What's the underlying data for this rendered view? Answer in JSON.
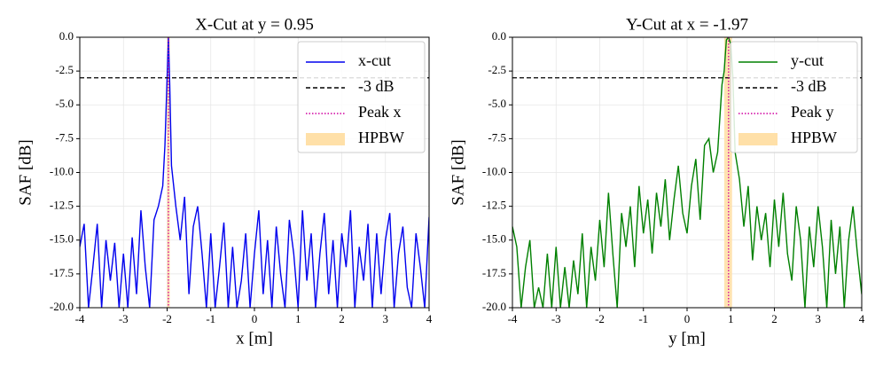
{
  "chart_data": [
    {
      "type": "line",
      "title": "X-Cut at y = 0.95",
      "xlabel": "x [m]",
      "ylabel": "SAF [dB]",
      "xlim": [
        -4,
        4
      ],
      "ylim": [
        -20,
        0
      ],
      "grid": true,
      "legend": "upper right",
      "xticks": [
        -4,
        -3,
        -2,
        -1,
        0,
        1,
        2,
        3,
        4
      ],
      "yticks": [
        {
          "value": 0,
          "label": "0.0"
        },
        -2.5,
        {
          "value": -5,
          "label": "-5.0"
        },
        -7.5,
        {
          "value": -10,
          "label": "-10.0"
        },
        -12.5,
        {
          "value": -15,
          "label": "-15.0"
        },
        -17.5,
        {
          "value": -20,
          "label": "-20.0"
        }
      ],
      "series": [
        {
          "name": "x-cut",
          "color": "#0000ee",
          "x": [
            -4.0,
            -3.9,
            -3.8,
            -3.7,
            -3.6,
            -3.5,
            -3.4,
            -3.3,
            -3.2,
            -3.1,
            -3.0,
            -2.9,
            -2.8,
            -2.7,
            -2.6,
            -2.5,
            -2.4,
            -2.3,
            -2.2,
            -2.1,
            -2.05,
            -2.0,
            -1.97,
            -1.94,
            -1.9,
            -1.8,
            -1.7,
            -1.6,
            -1.5,
            -1.4,
            -1.3,
            -1.2,
            -1.1,
            -1.0,
            -0.9,
            -0.8,
            -0.7,
            -0.6,
            -0.5,
            -0.4,
            -0.3,
            -0.2,
            -0.1,
            0.0,
            0.1,
            0.2,
            0.3,
            0.4,
            0.5,
            0.6,
            0.7,
            0.8,
            0.9,
            1.0,
            1.1,
            1.2,
            1.3,
            1.4,
            1.5,
            1.6,
            1.7,
            1.8,
            1.9,
            2.0,
            2.1,
            2.2,
            2.3,
            2.4,
            2.5,
            2.6,
            2.7,
            2.8,
            2.9,
            3.0,
            3.1,
            3.2,
            3.3,
            3.4,
            3.5,
            3.6,
            3.7,
            3.8,
            3.9,
            4.0
          ],
          "values": [
            -15.5,
            -13.8,
            -20,
            -17,
            -13.8,
            -20,
            -15,
            -18,
            -15.2,
            -20,
            -16,
            -20,
            -14.8,
            -19,
            -12.8,
            -17,
            -20,
            -13.5,
            -12.5,
            -11,
            -8,
            -3,
            0,
            -3.5,
            -9.5,
            -12.5,
            -15,
            -11.8,
            -19,
            -14,
            -12.5,
            -16,
            -20,
            -14.5,
            -20,
            -17,
            -13.7,
            -20,
            -15.5,
            -20,
            -18,
            -14.5,
            -20,
            -16,
            -12.8,
            -19,
            -15,
            -20,
            -14,
            -17.5,
            -20,
            -13.5,
            -16,
            -20,
            -12.8,
            -18,
            -14.5,
            -20,
            -16,
            -13,
            -19,
            -15,
            -20,
            -14.5,
            -17,
            -12.8,
            -20,
            -15.5,
            -18,
            -13.8,
            -20,
            -14.5,
            -19,
            -15,
            -13,
            -20,
            -16,
            -14,
            -18.5,
            -20,
            -14.5,
            -17,
            -20,
            -13.3
          ]
        }
      ],
      "hline": {
        "name": "-3 dB",
        "value": -3,
        "color": "#000000"
      },
      "vline": {
        "name": "Peak x",
        "value": -1.97,
        "color": "#d000a0"
      },
      "band": {
        "name": "HPBW",
        "range": [
          -2.0,
          -1.94
        ],
        "color": "#ffe0a8"
      }
    },
    {
      "type": "line",
      "title": "Y-Cut at x = -1.97",
      "xlabel": "y [m]",
      "ylabel": "SAF [dB]",
      "xlim": [
        -4,
        4
      ],
      "ylim": [
        -20,
        0
      ],
      "grid": true,
      "legend": "upper right",
      "xticks": [
        -4,
        -3,
        -2,
        -1,
        0,
        1,
        2,
        3,
        4
      ],
      "yticks": [
        {
          "value": 0,
          "label": "0.0"
        },
        -2.5,
        {
          "value": -5,
          "label": "-5.0"
        },
        -7.5,
        {
          "value": -10,
          "label": "-10.0"
        },
        -12.5,
        {
          "value": -15,
          "label": "-15.0"
        },
        -17.5,
        {
          "value": -20,
          "label": "-20.0"
        }
      ],
      "series": [
        {
          "name": "y-cut",
          "color": "#008000",
          "x": [
            -4.0,
            -3.9,
            -3.8,
            -3.7,
            -3.6,
            -3.5,
            -3.4,
            -3.3,
            -3.2,
            -3.1,
            -3.0,
            -2.9,
            -2.8,
            -2.7,
            -2.6,
            -2.5,
            -2.4,
            -2.3,
            -2.2,
            -2.1,
            -2.0,
            -1.9,
            -1.8,
            -1.7,
            -1.6,
            -1.5,
            -1.4,
            -1.3,
            -1.2,
            -1.1,
            -1.0,
            -0.9,
            -0.8,
            -0.7,
            -0.6,
            -0.5,
            -0.4,
            -0.3,
            -0.2,
            -0.1,
            0.0,
            0.1,
            0.2,
            0.3,
            0.4,
            0.5,
            0.6,
            0.7,
            0.8,
            0.85,
            0.9,
            0.95,
            1.0,
            1.05,
            1.1,
            1.2,
            1.3,
            1.4,
            1.5,
            1.6,
            1.7,
            1.8,
            1.9,
            2.0,
            2.1,
            2.2,
            2.3,
            2.4,
            2.5,
            2.6,
            2.7,
            2.8,
            2.9,
            3.0,
            3.1,
            3.2,
            3.3,
            3.4,
            3.5,
            3.6,
            3.7,
            3.8,
            3.9,
            4.0
          ],
          "values": [
            -14,
            -15.5,
            -20,
            -17,
            -15,
            -20,
            -18.5,
            -20,
            -16,
            -20,
            -15.5,
            -20,
            -17,
            -20,
            -16.5,
            -19,
            -14.5,
            -20,
            -15.5,
            -18,
            -13.5,
            -17,
            -11.5,
            -16,
            -20,
            -13,
            -15.5,
            -12.5,
            -17,
            -11,
            -14.5,
            -12,
            -16,
            -11.5,
            -14,
            -10.5,
            -15,
            -12,
            -9.5,
            -13,
            -14.5,
            -11,
            -9,
            -13.5,
            -8,
            -7.5,
            -10,
            -8.5,
            -3.5,
            -2.5,
            -0.2,
            0,
            -0.5,
            -3,
            -8.5,
            -10.5,
            -14,
            -11,
            -16.5,
            -12.5,
            -15,
            -13,
            -17,
            -12,
            -15.5,
            -11.5,
            -16,
            -18,
            -12.5,
            -15,
            -20,
            -14,
            -17,
            -12.5,
            -15.5,
            -20,
            -13.5,
            -17.5,
            -14,
            -20,
            -15,
            -12.5,
            -16,
            -19
          ]
        }
      ],
      "hline": {
        "name": "-3 dB",
        "value": -3,
        "color": "#000000"
      },
      "vline": {
        "name": "Peak y",
        "value": 0.95,
        "color": "#d000a0"
      },
      "band": {
        "name": "HPBW",
        "range": [
          0.85,
          1.03
        ],
        "color": "#ffe0a8"
      }
    }
  ]
}
